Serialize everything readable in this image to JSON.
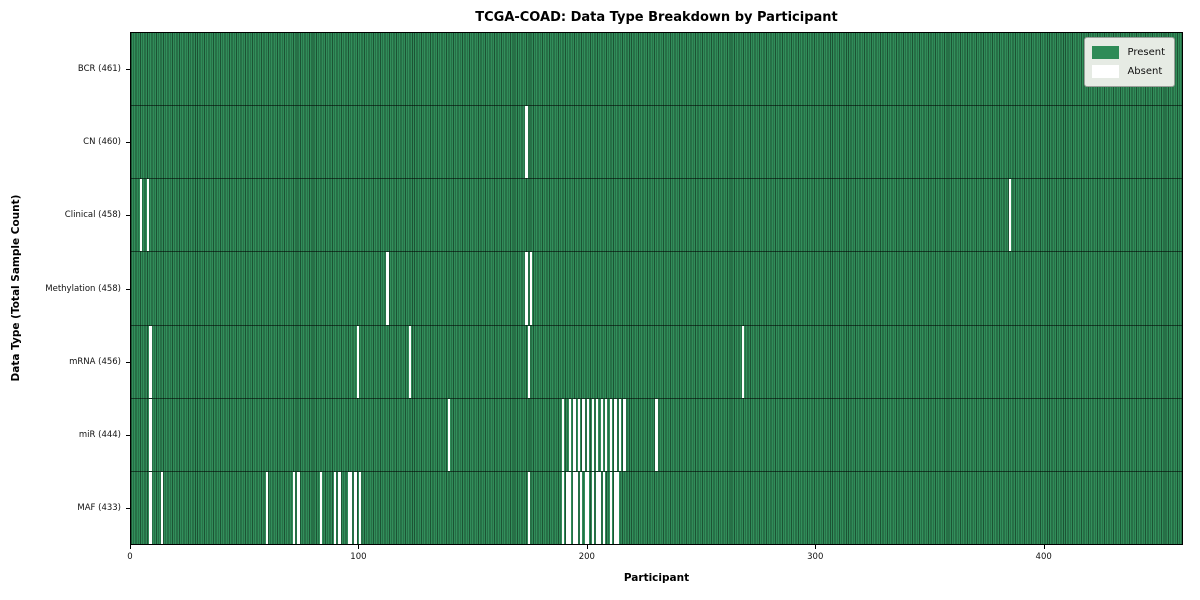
{
  "chart_data": {
    "type": "heatmap",
    "title": "TCGA-COAD: Data Type Breakdown by Participant",
    "xlabel": "Participant",
    "ylabel": "Data Type (Total Sample Count)",
    "xlim": [
      0,
      461
    ],
    "x_ticks": [
      0,
      100,
      200,
      300,
      400
    ],
    "grid": false,
    "legend_position": "upper right",
    "total_participants": 461,
    "legend": [
      {
        "label": "Present",
        "color": "#2e8b57"
      },
      {
        "label": "Absent",
        "color": "#ffffff"
      }
    ],
    "colors": {
      "present": "#2e8b57",
      "present_edge": "#1c5434",
      "absent": "#ffffff",
      "legend_bg": "#e6ebe4"
    },
    "rows": [
      {
        "name": "BCR",
        "label": "BCR (461)",
        "present_count": 461,
        "absent_participants": []
      },
      {
        "name": "CN",
        "label": "CN (460)",
        "present_count": 460,
        "absent_participants": [
          173
        ]
      },
      {
        "name": "Clinical",
        "label": "Clinical (458)",
        "present_count": 458,
        "absent_participants": [
          4,
          7,
          385
        ]
      },
      {
        "name": "Methylation",
        "label": "Methylation (458)",
        "present_count": 458,
        "absent_participants": [
          112,
          173,
          175
        ]
      },
      {
        "name": "mRNA",
        "label": "mRNA (456)",
        "present_count": 456,
        "absent_participants": [
          8,
          99,
          122,
          174,
          268
        ]
      },
      {
        "name": "miR",
        "label": "miR (444)",
        "present_count": 444,
        "absent_participants": [
          8,
          139,
          189,
          192,
          194,
          196,
          198,
          200,
          202,
          204,
          206,
          208,
          210,
          212,
          214,
          216,
          230
        ]
      },
      {
        "name": "MAF",
        "label": "MAF (433)",
        "present_count": 433,
        "absent_participants": [
          8,
          13,
          59,
          71,
          73,
          83,
          89,
          91,
          95,
          96,
          98,
          100,
          174,
          189,
          191,
          192,
          194,
          195,
          197,
          199,
          200,
          202,
          204,
          205,
          207,
          210,
          212,
          213
        ]
      }
    ]
  }
}
